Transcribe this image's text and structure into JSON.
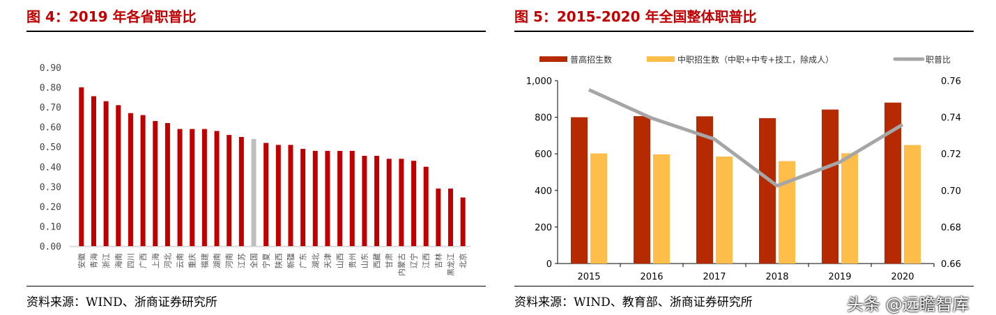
{
  "left": {
    "title": "图 4：2019 年各省职普比",
    "source": "资料来源：WIND、浙商证券研究所"
  },
  "right": {
    "title": "图 5：2015-2020 年全国整体职普比",
    "source": "资料来源：WIND、教育部、浙商证券研究所"
  },
  "watermark": "头条 @远瞻智库",
  "chart_data": [
    {
      "type": "bar",
      "title": "",
      "categories": [
        "安徽",
        "青海",
        "浙江",
        "海南",
        "四川",
        "广西",
        "上海",
        "河北",
        "云南",
        "重庆",
        "福建",
        "湖南",
        "河南",
        "江苏",
        "全国",
        "宁夏",
        "陕西",
        "新疆",
        "广东",
        "湖北",
        "天津",
        "山西",
        "贵州",
        "山东",
        "西藏",
        "甘肃",
        "内蒙古",
        "辽宁",
        "江西",
        "吉林",
        "黑龙江",
        "北京"
      ],
      "values": [
        0.8,
        0.755,
        0.73,
        0.71,
        0.67,
        0.66,
        0.63,
        0.62,
        0.59,
        0.59,
        0.59,
        0.58,
        0.56,
        0.55,
        0.54,
        0.52,
        0.51,
        0.51,
        0.49,
        0.48,
        0.48,
        0.48,
        0.48,
        0.455,
        0.455,
        0.44,
        0.44,
        0.43,
        0.4,
        0.29,
        0.29,
        0.245
      ],
      "highlight": "全国",
      "colors": {
        "bar": "#c00000",
        "highlight": "#bfbfbf"
      },
      "ylim": [
        0,
        0.9
      ],
      "yticks": [
        "0.00",
        "0.10",
        "0.20",
        "0.30",
        "0.40",
        "0.50",
        "0.60",
        "0.70",
        "0.80",
        "0.90"
      ],
      "grid": false
    },
    {
      "type": "bar+line",
      "categories": [
        "2015",
        "2016",
        "2017",
        "2018",
        "2019",
        "2020"
      ],
      "series": [
        {
          "name": "普高招生数",
          "kind": "bar",
          "axis": "left",
          "color": "#b52a00",
          "values": [
            800,
            806,
            805,
            795,
            842,
            880
          ]
        },
        {
          "name": "中职招生数（中职+中专+技工，除成人）",
          "kind": "bar",
          "axis": "left",
          "color": "#ffbd4a",
          "values": [
            602,
            597,
            585,
            560,
            603,
            648
          ]
        },
        {
          "name": "职普比",
          "kind": "line",
          "axis": "right",
          "color": "#a6a6a6",
          "values": [
            0.755,
            0.7395,
            0.728,
            0.7025,
            0.7155,
            0.736
          ]
        }
      ],
      "ylim_left": [
        0,
        1000
      ],
      "yticks_left": [
        "0",
        "200",
        "400",
        "600",
        "800",
        "1,000"
      ],
      "ylim_right": [
        0.66,
        0.76
      ],
      "yticks_right": [
        "0.66",
        "0.68",
        "0.70",
        "0.72",
        "0.74",
        "0.76"
      ],
      "legend": "top",
      "grid": false
    }
  ]
}
